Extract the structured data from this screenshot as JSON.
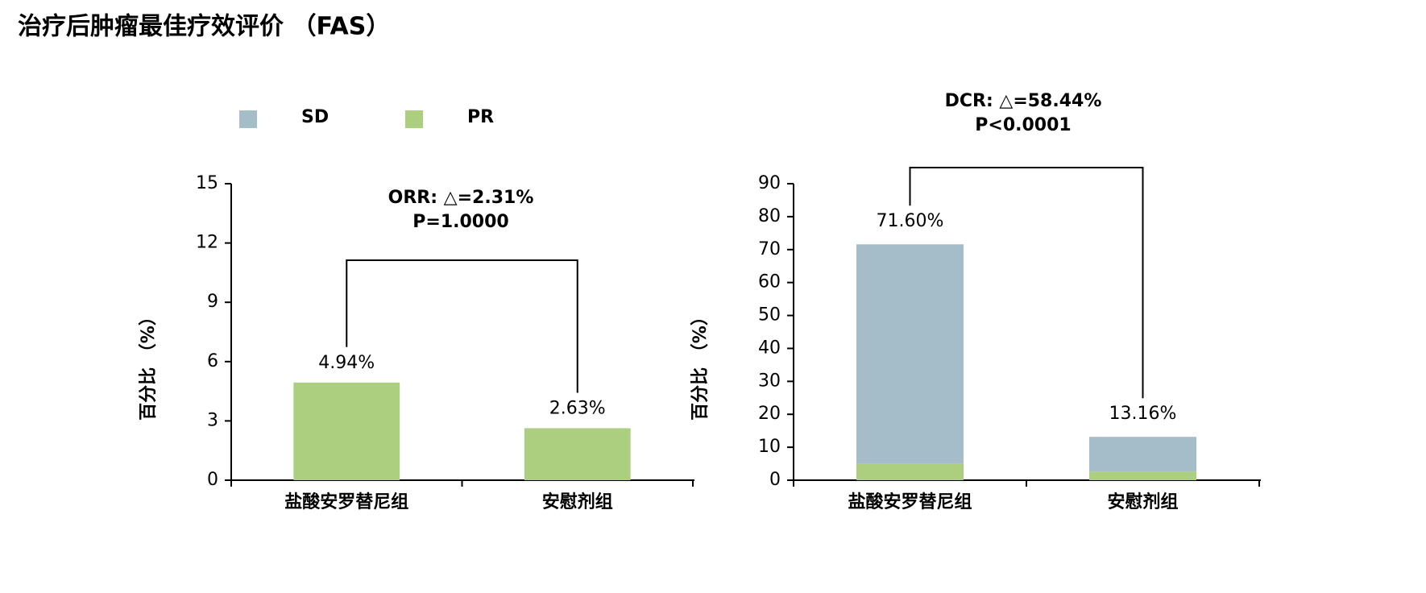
{
  "title": "治疗后肿瘤最佳疗效评价 （FAS）",
  "chart_data": [
    {
      "type": "bar",
      "categories": [
        "盐酸安罗替尼组",
        "安慰剂组"
      ],
      "series": [
        {
          "name": "PR",
          "color": "#acce7f",
          "values": [
            4.94,
            2.63
          ],
          "value_labels": [
            "4.94%",
            "2.63%"
          ]
        }
      ],
      "ylim": [
        0,
        15
      ],
      "yticks": [
        0,
        3,
        6,
        9,
        12,
        15
      ],
      "ylabel": "百分比 （%）",
      "annotation": [
        "ORR: △=2.31%",
        "P=1.0000"
      ]
    },
    {
      "type": "stacked_bar",
      "categories": [
        "盐酸安罗替尼组",
        "安慰剂组"
      ],
      "series": [
        {
          "name": "SD",
          "color": "#a5bcc9",
          "values": [
            66.66,
            10.53
          ]
        },
        {
          "name": "PR",
          "color": "#acce7f",
          "values": [
            4.94,
            2.63
          ]
        }
      ],
      "totals": {
        "values": [
          71.6,
          13.16
        ],
        "labels": [
          "71.60%",
          "13.16%"
        ]
      },
      "ylim": [
        0,
        90
      ],
      "yticks": [
        0,
        10,
        20,
        30,
        40,
        50,
        60,
        70,
        80,
        90
      ],
      "ylabel": "百分比 （%）",
      "annotation": [
        "DCR: △=58.44%",
        "P<0.0001"
      ]
    }
  ]
}
